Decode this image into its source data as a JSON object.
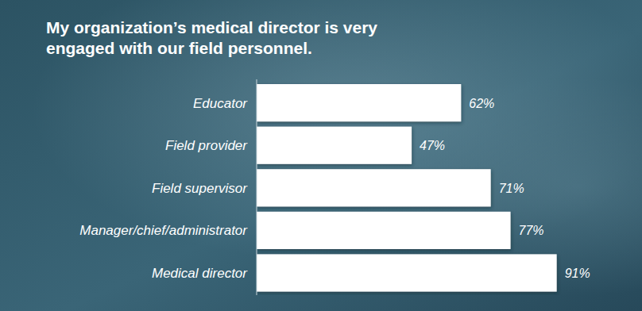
{
  "chart_data": {
    "type": "bar",
    "title": "My organization’s medical director is very engaged with our field personnel.",
    "categories": [
      "Educator",
      "Field provider",
      "Field supervisor",
      "Manager/chief/administrator",
      "Medical director"
    ],
    "values": [
      62,
      47,
      71,
      77,
      91
    ],
    "value_labels": [
      "62%",
      "47%",
      "71%",
      "77%",
      "91%"
    ],
    "orientation": "horizontal",
    "color": "#ffffff",
    "xlim": [
      0,
      100
    ],
    "data_labels": true,
    "tick_labels": "y",
    "grid": false
  }
}
